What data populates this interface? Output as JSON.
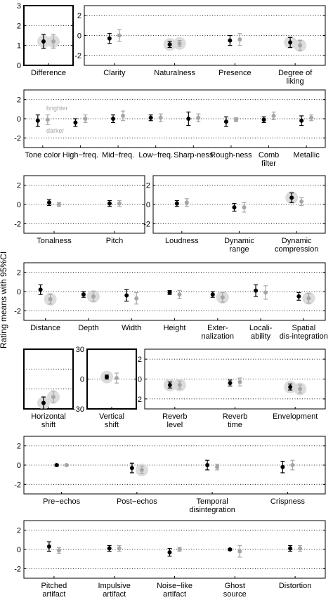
{
  "ylabel": "Rating means with 95%CI",
  "legend": {
    "top": "brighter",
    "bottom": "darker"
  },
  "colors": {
    "first": "#000000",
    "second": "#a6a6a6",
    "highlight": "#dcdcdc",
    "grid": "#000000"
  },
  "chart_data": [
    {
      "type": "scatter",
      "categories": [
        "Difference"
      ],
      "ylim": [
        0,
        3
      ],
      "yticks": [
        0,
        1,
        2,
        3
      ],
      "series": [
        {
          "values": [
            1.2
          ],
          "ci": [
            0.35
          ],
          "highlight": [
            true
          ]
        },
        {
          "values": [
            1.2
          ],
          "ci": [
            0.35
          ],
          "highlight": [
            true
          ]
        }
      ]
    },
    {
      "type": "scatter",
      "categories": [
        "Clarity",
        "Naturalness",
        "Presence",
        "Degree of liking"
      ],
      "ylim": [
        -3,
        3
      ],
      "yticks": [
        -2,
        0,
        2
      ],
      "series": [
        {
          "values": [
            -0.3,
            -0.9,
            -0.5,
            -0.7
          ],
          "ci": [
            0.5,
            0.3,
            0.5,
            0.5
          ],
          "highlight": [
            false,
            true,
            false,
            true
          ]
        },
        {
          "values": [
            0.0,
            -0.8,
            -0.4,
            -1.0
          ],
          "ci": [
            0.6,
            0.3,
            0.6,
            0.5
          ],
          "highlight": [
            false,
            true,
            false,
            true
          ]
        }
      ]
    },
    {
      "type": "scatter",
      "categories": [
        "Tone color",
        "High−freq.",
        "Mid−freq.",
        "Low−freq.",
        "Sharp-ness",
        "Rough-ness",
        "Comb filter",
        "Metallic"
      ],
      "ylim": [
        -3,
        3
      ],
      "yticks": [
        -2,
        0,
        2
      ],
      "series": [
        {
          "values": [
            -0.2,
            -0.4,
            0.0,
            0.1,
            0.0,
            -0.3,
            -0.1,
            -0.2
          ],
          "ci": [
            0.6,
            0.4,
            0.4,
            0.3,
            0.7,
            0.5,
            0.3,
            0.5
          ],
          "highlight": [
            false,
            false,
            false,
            false,
            false,
            false,
            false,
            false
          ]
        },
        {
          "values": [
            -0.1,
            0.0,
            0.3,
            0.1,
            0.1,
            -0.1,
            0.3,
            0.1
          ],
          "ci": [
            0.5,
            0.4,
            0.5,
            0.4,
            0.4,
            0.2,
            0.4,
            0.3
          ],
          "highlight": [
            false,
            false,
            false,
            false,
            false,
            false,
            false,
            false
          ]
        }
      ]
    },
    {
      "type": "scatter",
      "categories": [
        "Tonalness",
        "Pitch"
      ],
      "ylim": [
        -3,
        3
      ],
      "yticks": [
        -2,
        0,
        2
      ],
      "series": [
        {
          "values": [
            0.2,
            0.1
          ],
          "ci": [
            0.3,
            0.3
          ],
          "highlight": [
            false,
            false
          ]
        },
        {
          "values": [
            0.0,
            0.1
          ],
          "ci": [
            0.2,
            0.3
          ],
          "highlight": [
            false,
            false
          ]
        }
      ]
    },
    {
      "type": "scatter",
      "categories": [
        "Loudness",
        "Dynamic range",
        "Dynamic compression"
      ],
      "ylim": [
        -3,
        3
      ],
      "yticks": [
        -2,
        0,
        2
      ],
      "series": [
        {
          "values": [
            0.1,
            -0.3,
            0.7
          ],
          "ci": [
            0.3,
            0.4,
            0.5
          ],
          "highlight": [
            false,
            false,
            true
          ]
        },
        {
          "values": [
            0.2,
            -0.3,
            0.3
          ],
          "ci": [
            0.4,
            0.5,
            0.4
          ],
          "highlight": [
            false,
            false,
            false
          ]
        }
      ]
    },
    {
      "type": "scatter",
      "categories": [
        "Distance",
        "Depth",
        "Width",
        "Height",
        "Exter-nalization",
        "Locali-ability",
        "Spatial dis-integration"
      ],
      "ylim": [
        -3,
        3
      ],
      "yticks": [
        -2,
        0,
        2
      ],
      "series": [
        {
          "values": [
            0.2,
            -0.3,
            -0.4,
            -0.1,
            -0.3,
            0.1,
            -0.5
          ],
          "ci": [
            0.5,
            0.3,
            0.6,
            0.2,
            0.3,
            0.6,
            0.4
          ],
          "highlight": [
            false,
            false,
            false,
            false,
            false,
            false,
            false
          ]
        },
        {
          "values": [
            -0.8,
            -0.5,
            -0.7,
            -0.3,
            -0.6,
            -0.1,
            -0.7
          ],
          "ci": [
            0.5,
            0.5,
            0.6,
            0.4,
            0.5,
            0.7,
            0.5
          ],
          "highlight": [
            true,
            true,
            false,
            false,
            true,
            false,
            true
          ]
        }
      ]
    },
    {
      "type": "scatter",
      "categories": [
        "Horizontal shift"
      ],
      "ylim": [
        0,
        30
      ],
      "yticks": [],
      "series": [
        {
          "values": [
            3
          ],
          "ci": [
            3
          ],
          "highlight": [
            true
          ]
        },
        {
          "values": [
            6
          ],
          "ci": [
            3
          ],
          "highlight": [
            true
          ]
        }
      ]
    },
    {
      "type": "scatter",
      "categories": [
        "Vertical shift"
      ],
      "ylim": [
        -30,
        30
      ],
      "yticks": [
        -30,
        0,
        30
      ],
      "series": [
        {
          "values": [
            2
          ],
          "ci": [
            2
          ],
          "highlight": [
            true
          ]
        },
        {
          "values": [
            1
          ],
          "ci": [
            5
          ],
          "highlight": [
            false
          ]
        }
      ]
    },
    {
      "type": "scatter",
      "categories": [
        "Reverb level",
        "Reverb time",
        "Envelopment"
      ],
      "ylim": [
        -3,
        3
      ],
      "yticks": [
        -2,
        0,
        2
      ],
      "series": [
        {
          "values": [
            -0.6,
            -0.4,
            -0.8
          ],
          "ci": [
            0.3,
            0.3,
            0.3
          ],
          "highlight": [
            true,
            false,
            true
          ]
        },
        {
          "values": [
            -0.6,
            -0.3,
            -1.0
          ],
          "ci": [
            0.4,
            0.4,
            0.4
          ],
          "highlight": [
            true,
            false,
            true
          ]
        }
      ]
    },
    {
      "type": "scatter",
      "categories": [
        "Pre−echos",
        "Post−echos",
        "Temporal disintegration",
        "Crispness"
      ],
      "ylim": [
        -3,
        3
      ],
      "yticks": [
        -2,
        0,
        2
      ],
      "series": [
        {
          "values": [
            0.0,
            -0.3,
            0.0,
            -0.2
          ],
          "ci": [
            0.1,
            0.5,
            0.5,
            0.6
          ],
          "highlight": [
            false,
            false,
            false,
            false
          ]
        },
        {
          "values": [
            0.0,
            -0.5,
            -0.2,
            0.0
          ],
          "ci": [
            0.1,
            0.4,
            0.3,
            0.5
          ],
          "highlight": [
            false,
            true,
            false,
            false
          ]
        }
      ]
    },
    {
      "type": "scatter",
      "categories": [
        "Pitched artifact",
        "Impulsive artifact",
        "Noise−like artifact",
        "Ghost source",
        "Distortion"
      ],
      "ylim": [
        -3,
        3
      ],
      "yticks": [
        -2,
        0,
        2
      ],
      "series": [
        {
          "values": [
            0.3,
            0.1,
            -0.3,
            0.0,
            0.1
          ],
          "ci": [
            0.5,
            0.3,
            0.4,
            0.1,
            0.3
          ],
          "highlight": [
            false,
            false,
            false,
            false,
            false
          ]
        },
        {
          "values": [
            -0.1,
            0.1,
            0.0,
            -0.2,
            0.1
          ],
          "ci": [
            0.3,
            0.3,
            0.2,
            0.6,
            0.3
          ],
          "highlight": [
            false,
            false,
            false,
            false,
            false
          ]
        }
      ]
    }
  ]
}
